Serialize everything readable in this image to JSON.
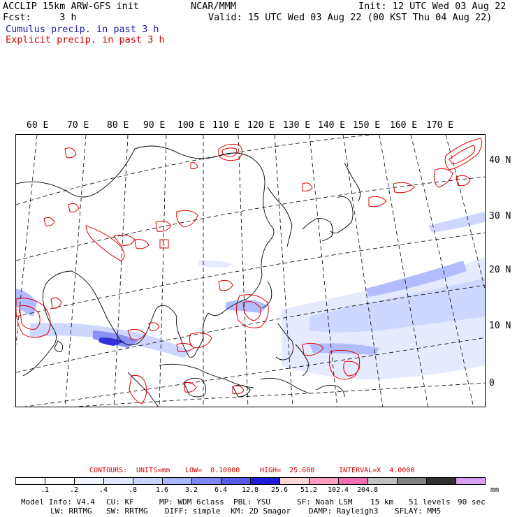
{
  "header": {
    "line1_left": "ACCLIP 15km ARW-GFS init",
    "line1_center": "NCAR/MMM",
    "line1_right": "Init: 12 UTC Wed 03 Aug 22",
    "line2_left": "Fcst:     3 h",
    "line2_right": "Valid: 15 UTC Wed 03 Aug 22 (00 KST Thu 04 Aug 22)",
    "legend_cumulus": "Cumulus precip. in past 3 h",
    "legend_explicit": "Explicit precip. in past 3 h"
  },
  "colors": {
    "cumulus_text": "#1a1aa6",
    "explicit_text": "#d40000",
    "contour_line": "#e00000",
    "coast_line": "#000000",
    "grid_line": "#000000"
  },
  "map": {
    "lon_labels": [
      "60 E",
      "70 E",
      "80 E",
      "90 E",
      "100 E",
      "110 E",
      "120 E",
      "130 E",
      "140 E",
      "150 E",
      "160 E",
      "170 E"
    ],
    "lat_labels": [
      "40 N",
      "30 N",
      "20 N",
      "10 N",
      "0"
    ],
    "box_marker": "1"
  },
  "contours_line": {
    "label_contours": "CONTOURS:",
    "label_units": "UNITS=mm",
    "label_low": "LOW=  0.10000",
    "label_high": "HIGH=  25.600",
    "label_interval": "INTERVAL=X  4.0000"
  },
  "colorbar": {
    "swatches": [
      "#ffffff",
      "#ffffff",
      "#f2f4ff",
      "#e3e8ff",
      "#c9d3ff",
      "#a9b6ff",
      "#7f87f5",
      "#5a5ae8",
      "#1e1ed6",
      "#ffd6d6",
      "#ff9ec0",
      "#f06fb0",
      "#c0c0c0",
      "#808080",
      "#303030",
      "#d8a0f0"
    ],
    "labels": [
      ".1",
      ".2",
      ".4",
      ".8",
      "1.6",
      "3.2",
      "6.4",
      "12.8",
      "25.6",
      "51.2",
      "102.4",
      "204.8"
    ],
    "unit": "mm"
  },
  "footer": {
    "line1_model": "Model Info: V4.4",
    "line1_cu": "CU: KF",
    "line1_mp": "MP: WDM 6class",
    "line1_pbl": "PBL: YSU",
    "line1_sf": "SF: Noah LSM",
    "line1_res": "15 km",
    "line1_levels": "51 levels",
    "line1_dt": "90 sec",
    "line2_lw": "LW: RRTMG",
    "line2_sw": "SW: RRTMG",
    "line2_diff": "DIFF: simple",
    "line2_km": "KM: 2D Smagor",
    "line2_damp": "DAMP: Rayleigh3",
    "line2_sflay": "SFLAY: MM5"
  }
}
